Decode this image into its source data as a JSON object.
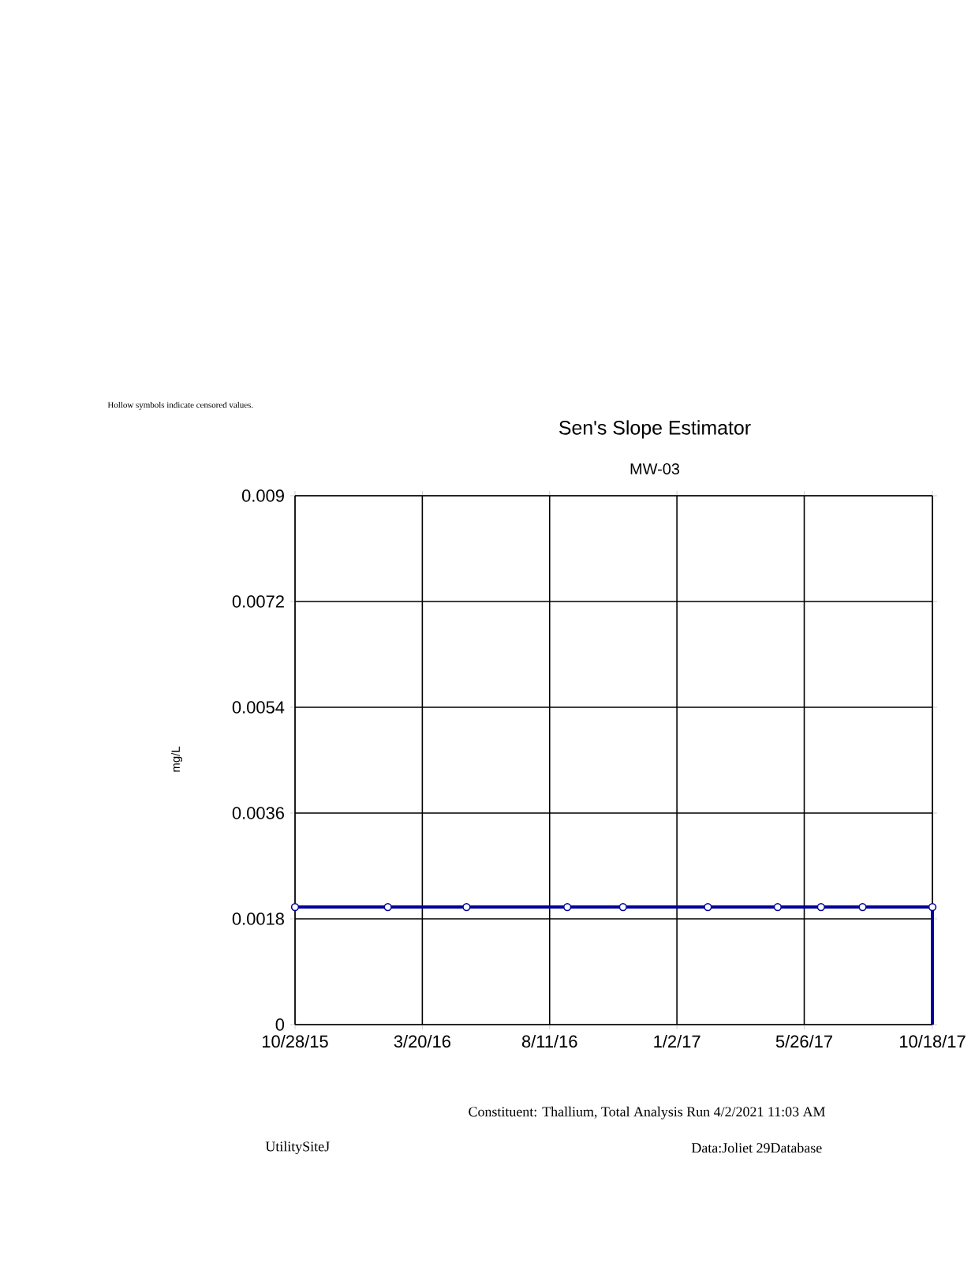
{
  "chart_data": {
    "type": "scatter",
    "title": "Sen's Slope Estimator",
    "subtitle": "MW-03",
    "ylabel": "mg/L",
    "annotations": [
      "Hollow symbols indicate censored values.",
      "Constituent: Thallium, Total Analysis Run 4/2/2021 11:03 AM",
      "UtilitySiteJ",
      "Data:Joliet 29Database"
    ],
    "xlim": [
      "2015-10-28",
      "2017-10-18"
    ],
    "xticks": [
      {
        "value": "2015-10-28",
        "label": "10/28/15"
      },
      {
        "value": "2016-03-20",
        "label": "3/20/16"
      },
      {
        "value": "2016-08-11",
        "label": "8/11/16"
      },
      {
        "value": "2017-01-02",
        "label": "1/2/17"
      },
      {
        "value": "2017-05-26",
        "label": "5/26/17"
      },
      {
        "value": "2017-10-18",
        "label": "10/18/17"
      }
    ],
    "ylim": [
      0,
      0.009
    ],
    "yticks": [
      0,
      0.0018,
      0.0036,
      0.0054,
      0.0072,
      0.009
    ],
    "grid": true,
    "series": [
      {
        "marker": "circle",
        "color": "#000099",
        "x": [
          "2015-10-28",
          "2016-02-10",
          "2016-05-09",
          "2016-08-31",
          "2016-11-02",
          "2017-02-06",
          "2017-04-26",
          "2017-06-14",
          "2017-07-31",
          "2017-10-18"
        ],
        "values": [
          0.002,
          0.002,
          0.002,
          0.002,
          0.002,
          0.002,
          0.002,
          0.002,
          0.002,
          0.002
        ]
      },
      {
        "type": "line",
        "marker": "none",
        "color": "#000099",
        "line_style": "solid",
        "x": [
          "2015-10-28",
          "2017-10-18",
          "2017-10-18"
        ],
        "values": [
          0.002,
          0.002,
          0
        ]
      }
    ]
  }
}
